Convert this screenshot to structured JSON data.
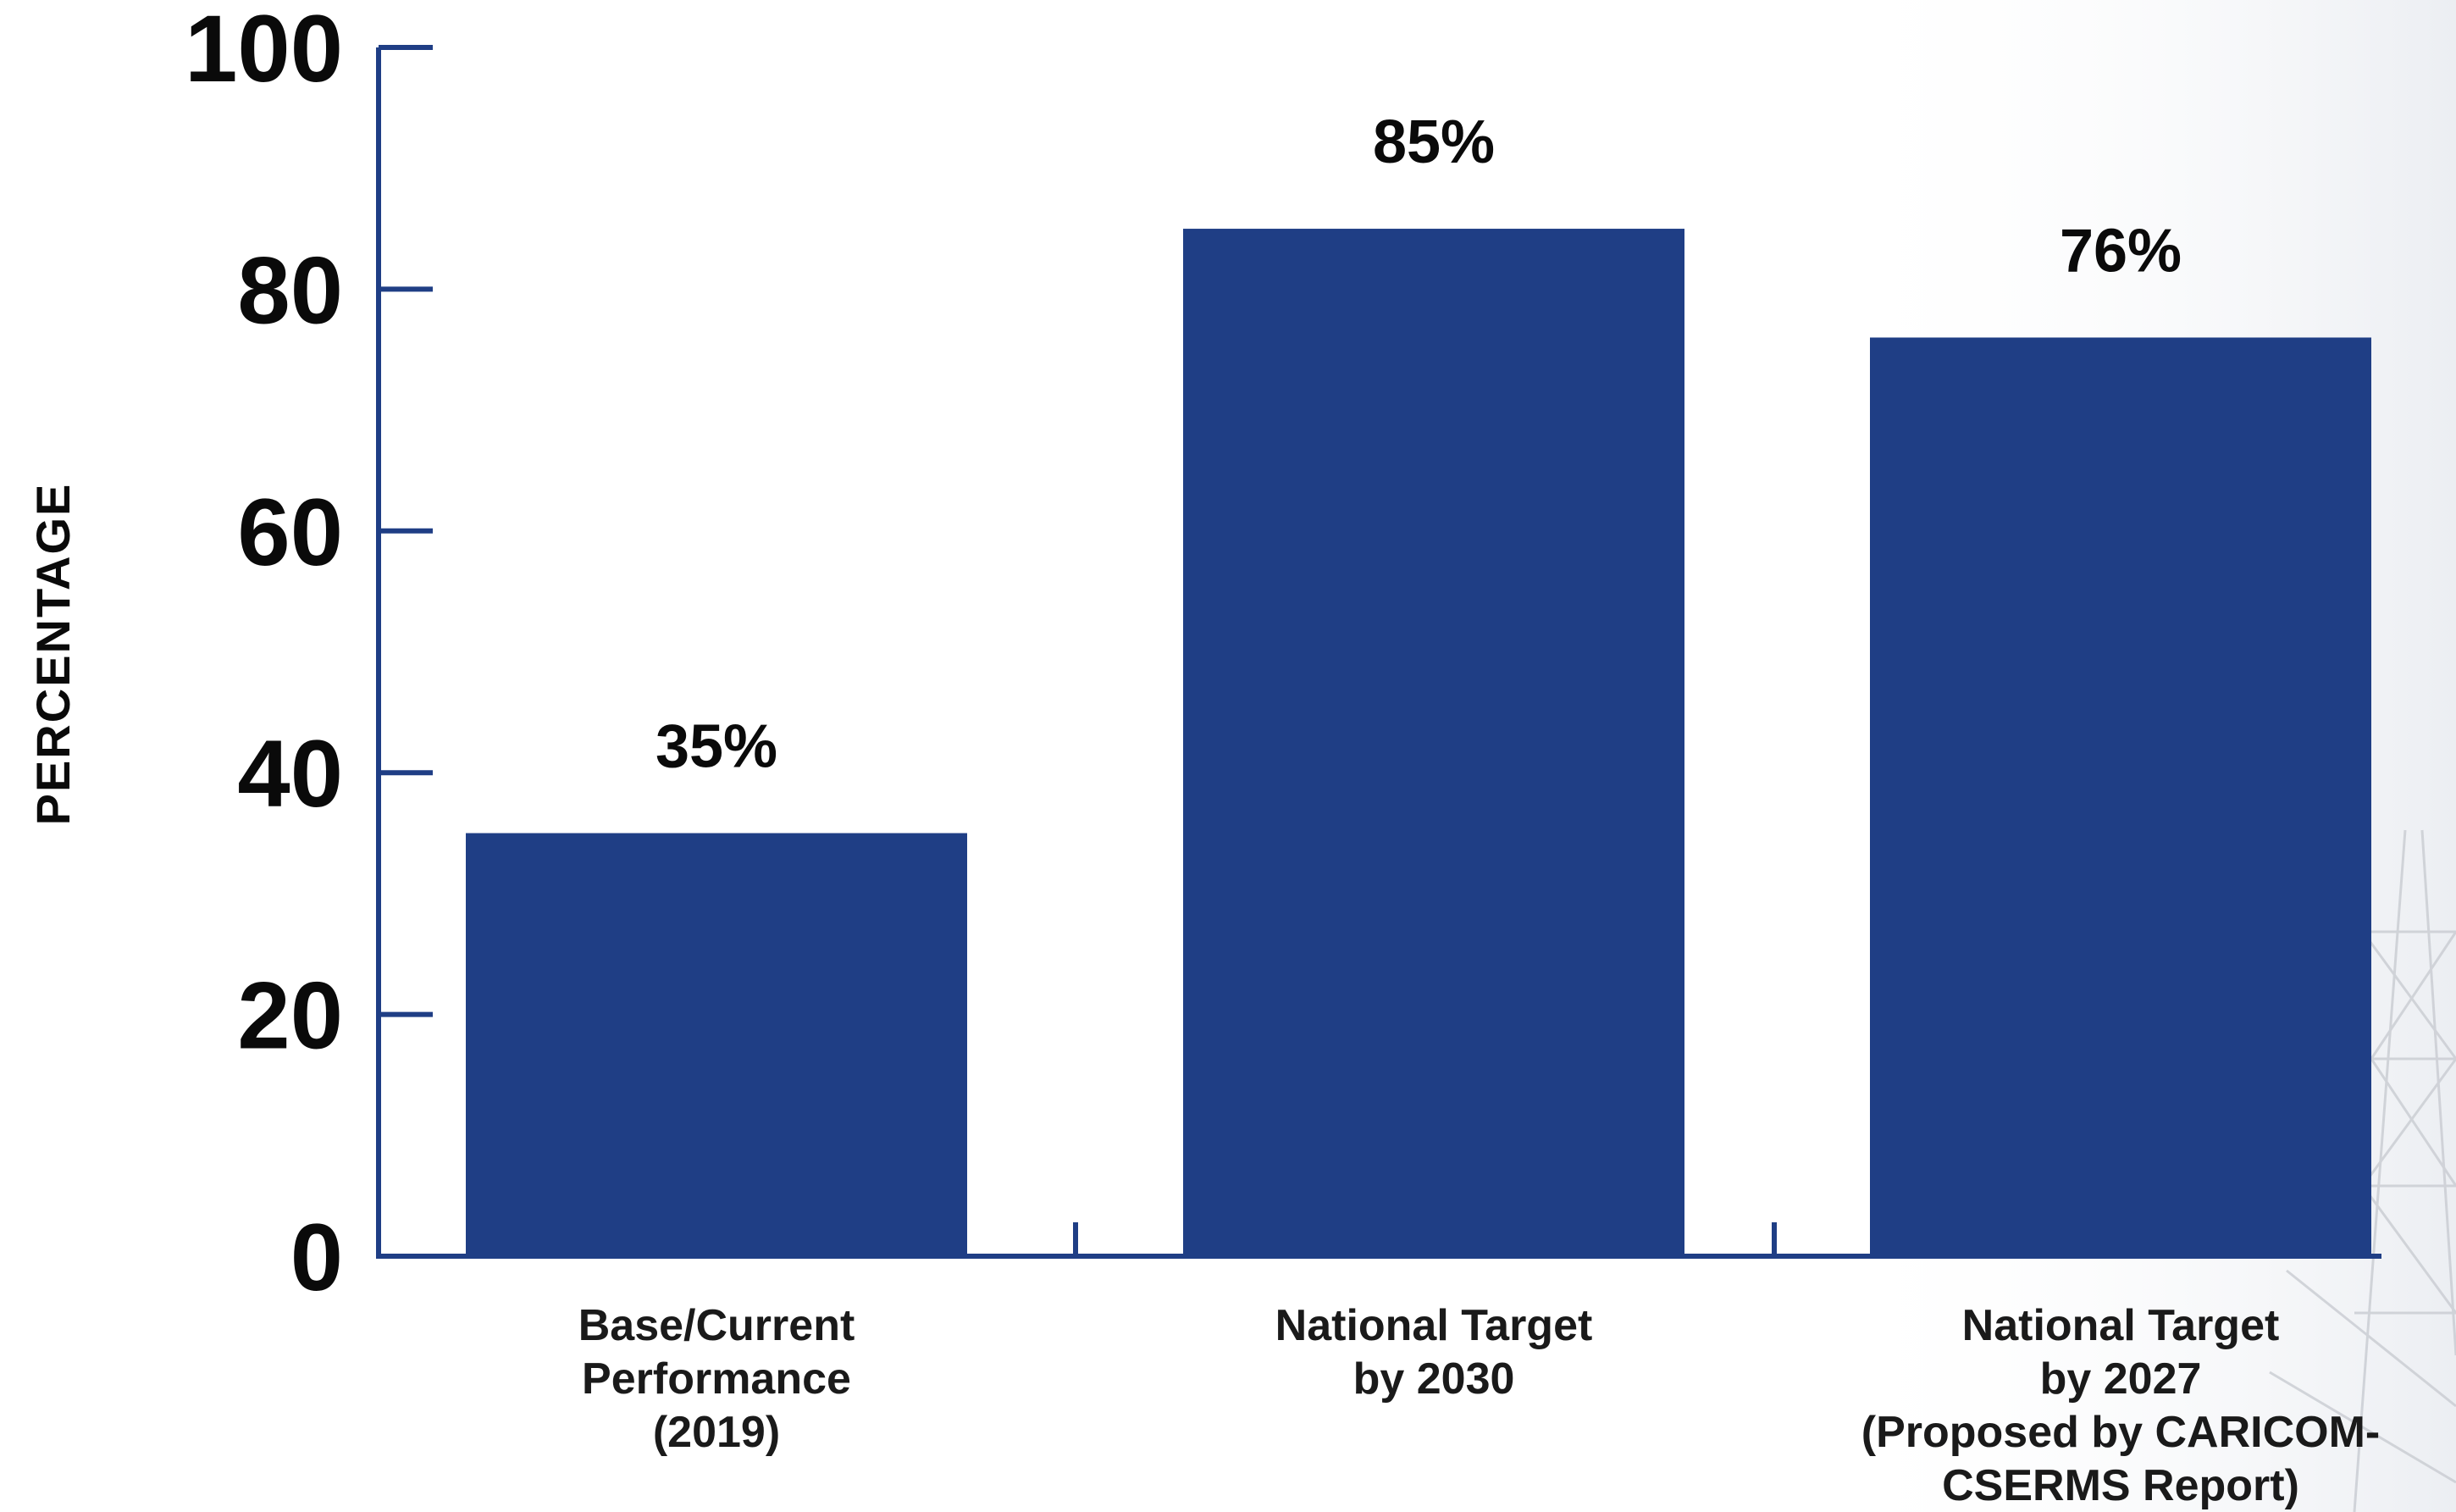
{
  "chart_data": {
    "type": "bar",
    "title": "",
    "xlabel": "",
    "ylabel": "PERCENTAGE",
    "ylim": [
      0,
      100
    ],
    "yticks": [
      0,
      20,
      40,
      60,
      80,
      100
    ],
    "grid": false,
    "categories": [
      [
        "Base/Current",
        "Performance",
        "(2019)"
      ],
      [
        "National Target",
        "by 2030"
      ],
      [
        "National Target",
        "by 2027",
        "(Proposed by CARICOM-",
        "CSERMS Report)"
      ]
    ],
    "values": [
      35,
      85,
      76
    ],
    "data_labels": [
      "35%",
      "85%",
      "76%"
    ],
    "colors": {
      "bar": "#1f3e85",
      "axis": "#1f3e85",
      "text": "#0a0a0a"
    }
  }
}
